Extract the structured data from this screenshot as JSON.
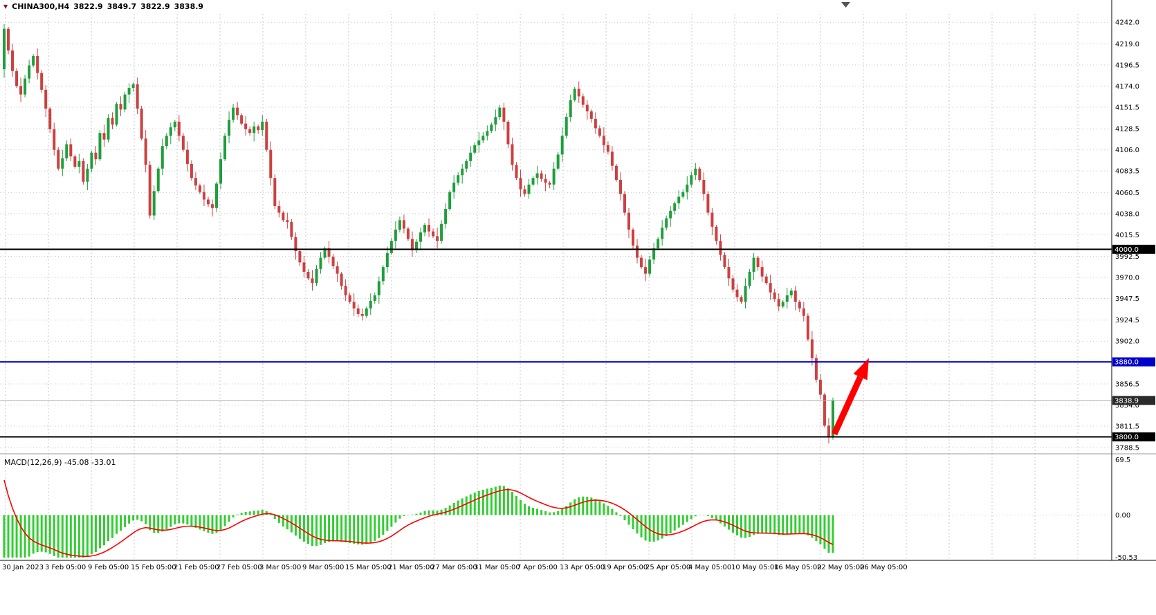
{
  "header": {
    "symbol_icon": "▼",
    "symbol_period": "CHINA300,H4",
    "open": "3822.9",
    "high": "3849.7",
    "low": "3822.9",
    "close": "3838.9"
  },
  "colors": {
    "bull": "#1f9e3c",
    "bear": "#cc4040",
    "grid": "#c8c8c8",
    "axis_text": "#000000",
    "macd_hist": "#32CD32",
    "macd_signal": "#ff0000",
    "current_line": "#b0b0b0",
    "axis_border": "#000000",
    "separator": "#9a9a9a",
    "tag_text": "#ffffff"
  },
  "chart_data": {
    "type": "candlestick",
    "title": "CHINA300,H4",
    "timeframe": "H4",
    "x_range": [
      "30 Jan 2023",
      "26 May 2023"
    ],
    "y_range": [
      3788.5,
      4242.0
    ],
    "y_axis": {
      "ticks": [
        "4242.0",
        "4219.0",
        "4196.5",
        "4174.0",
        "4151.5",
        "4128.5",
        "4106.0",
        "4083.5",
        "4060.5",
        "4038.0",
        "4015.5",
        "3992.5",
        "3970.0",
        "3947.5",
        "3924.5",
        "3902.0",
        "3856.5",
        "3834.0",
        "3811.5",
        "3788.5"
      ],
      "tagged": [
        {
          "label": "4000.0",
          "price": 4000.0,
          "bg": "#000000"
        },
        {
          "label": "3880.0",
          "price": 3880.0,
          "bg": "#0000cd"
        },
        {
          "label": "3838.9",
          "price": 3838.9,
          "bg": "#2b2b2b"
        },
        {
          "label": "3800.0",
          "price": 3800.0,
          "bg": "#000000"
        }
      ]
    },
    "x_axis": {
      "labels": [
        "30 Jan 2023",
        "3 Feb 05:00",
        "9 Feb 05:00",
        "15 Feb 05:00",
        "21 Feb 05:00",
        "27 Feb 05:00",
        "3 Mar 05:00",
        "9 Mar 05:00",
        "15 Mar 05:00",
        "21 Mar 05:00",
        "27 Mar 05:00",
        "31 Mar 05:00",
        "7 Apr 05:00",
        "13 Apr 05:00",
        "19 Apr 05:00",
        "25 Apr 05:00",
        "4 May 05:00",
        "10 May 05:00",
        "16 May 05:00",
        "22 May 05:00",
        "26 May 05:00"
      ]
    },
    "levels": [
      {
        "price": 4000.0,
        "color": "#000000",
        "width": 2
      },
      {
        "price": 3880.0,
        "color": "#0000cd",
        "width": 2
      },
      {
        "price": 3800.0,
        "color": "#000000",
        "width": 2
      }
    ],
    "current_price": 3838.9,
    "candles": {
      "first_open": 4192,
      "wick_pattern": [
        5,
        2,
        7,
        3,
        9,
        4,
        6,
        2,
        8,
        3
      ],
      "closes": [
        4235,
        4212,
        4190,
        4174,
        4165,
        4182,
        4196,
        4206,
        4188,
        4170,
        4150,
        4128,
        4106,
        4086,
        4097,
        4112,
        4099,
        4088,
        4094,
        4072,
        4086,
        4103,
        4096,
        4124,
        4117,
        4140,
        4133,
        4155,
        4149,
        4165,
        4172,
        4176,
        4150,
        4118,
        4090,
        4036,
        4062,
        4086,
        4110,
        4121,
        4130,
        4136,
        4121,
        4106,
        4091,
        4076,
        4068,
        4061,
        4053,
        4048,
        4044,
        4070,
        4096,
        4121,
        4138,
        4151,
        4143,
        4134,
        4128,
        4124,
        4131,
        4127,
        4136,
        4106,
        4076,
        4046,
        4039,
        4031,
        4029,
        4013,
        3998,
        3986,
        3976,
        3969,
        3964,
        3979,
        3991,
        4001,
        3992,
        3982,
        3974,
        3961,
        3951,
        3944,
        3937,
        3931,
        3929,
        3937,
        3945,
        3951,
        3966,
        3981,
        3996,
        4009,
        4021,
        4031,
        4022,
        4011,
        3999,
        4008,
        4018,
        4026,
        4019,
        4014,
        4009,
        4027,
        4043,
        4061,
        4071,
        4079,
        4086,
        4094,
        4103,
        4111,
        4116,
        4121,
        4126,
        4133,
        4141,
        4151,
        4136,
        4112,
        4090,
        4076,
        4064,
        4059,
        4069,
        4076,
        4081,
        4075,
        4071,
        4069,
        4086,
        4101,
        4121,
        4141,
        4159,
        4171,
        4163,
        4154,
        4147,
        4139,
        4129,
        4121,
        4111,
        4104,
        4089,
        4074,
        4059,
        4039,
        4021,
        4004,
        3991,
        3981,
        3974,
        3989,
        4001,
        4011,
        4023,
        4033,
        4041,
        4049,
        4056,
        4061,
        4069,
        4079,
        4086,
        4074,
        4059,
        4039,
        4024,
        4009,
        3994,
        3981,
        3969,
        3957,
        3949,
        3944,
        3961,
        3976,
        3991,
        3981,
        3971,
        3964,
        3954,
        3947,
        3939,
        3944,
        3951,
        3956,
        3944,
        3937,
        3929,
        3904,
        3884,
        3861,
        3845,
        3812,
        3800,
        3838.9
      ]
    },
    "macd": {
      "label": "MACD(12,26,9)",
      "fast": 12,
      "slow": 26,
      "signal": 9,
      "macd_value": "-45.08",
      "signal_value": "-33.01",
      "scale_max": 69.5,
      "scale_min": -50.53,
      "ticks": [
        "69.5",
        "0.00",
        "-50.53"
      ],
      "seed": {
        "ema12_offset": 15,
        "ema26_offset": 70,
        "signal_start": 65
      }
    },
    "annotation_arrow": {
      "from_price": 3803,
      "to_price": 3884,
      "color": "#ff0000"
    }
  }
}
